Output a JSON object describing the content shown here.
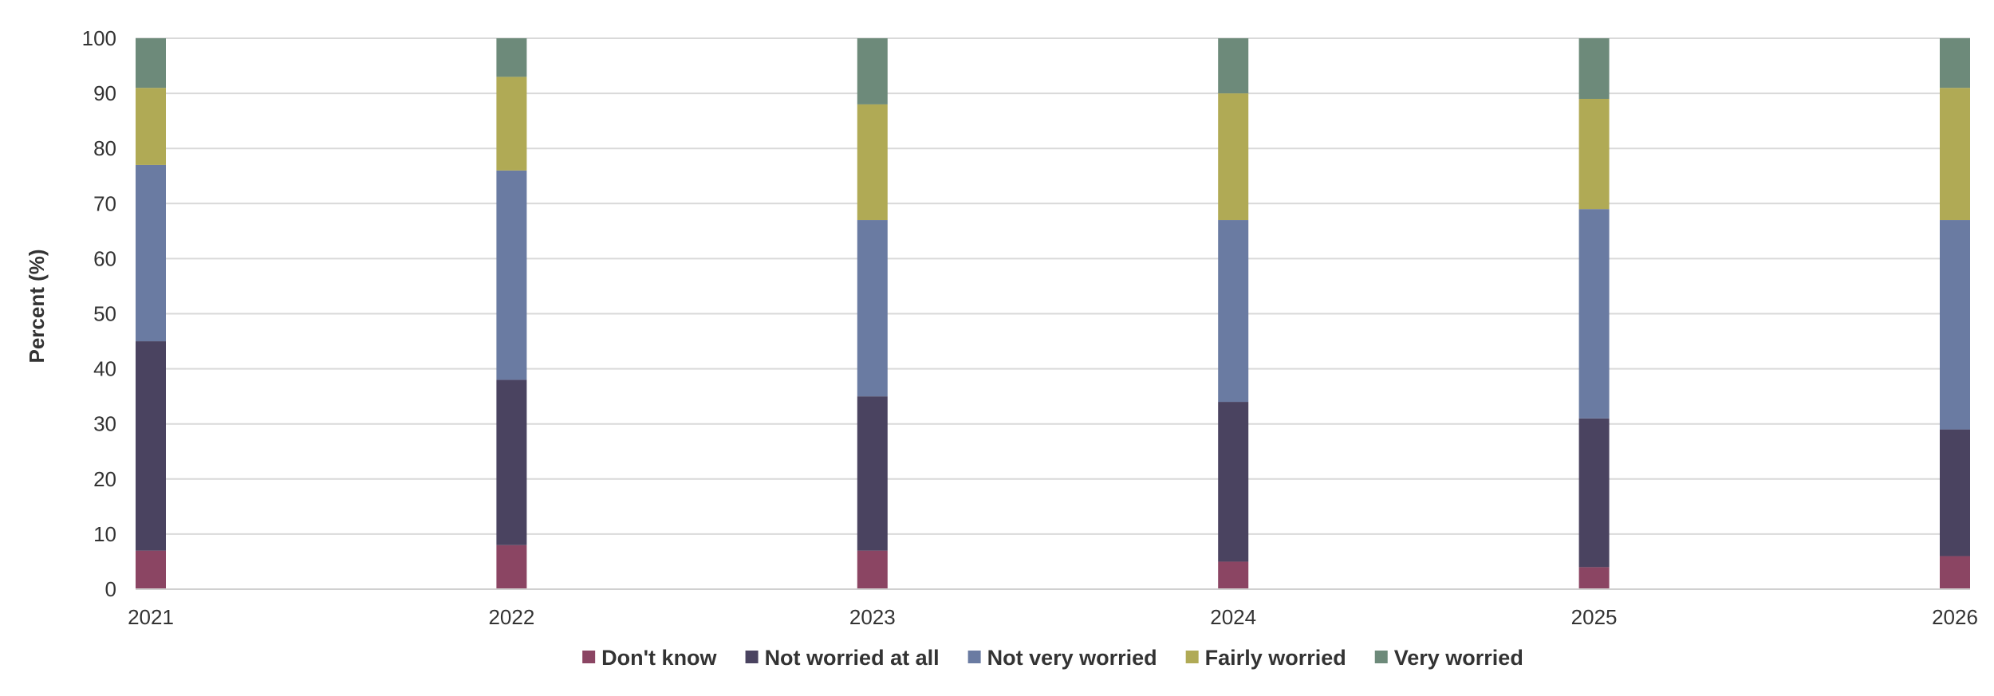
{
  "chart_data": {
    "type": "bar",
    "stacked": true,
    "ylabel": "Percent (%)",
    "xlabel": "",
    "ylim": [
      0,
      100
    ],
    "yticks": [
      0,
      10,
      20,
      30,
      40,
      50,
      60,
      70,
      80,
      90,
      100
    ],
    "grid": true,
    "legend_position": "bottom",
    "categories": [
      "2021",
      "2022",
      "2023",
      "2024",
      "2025",
      "2026"
    ],
    "series": [
      {
        "name": "Don't know",
        "color": "#8b4563",
        "values": [
          7,
          8,
          7,
          5,
          4,
          6
        ]
      },
      {
        "name": "Not worried at all",
        "color": "#4a4360",
        "values": [
          38,
          30,
          28,
          29,
          27,
          23
        ]
      },
      {
        "name": "Not very worried",
        "color": "#6a7ba2",
        "values": [
          32,
          38,
          32,
          33,
          38,
          38
        ]
      },
      {
        "name": "Fairly worried",
        "color": "#b0aa55",
        "values": [
          14,
          17,
          21,
          23,
          20,
          24
        ]
      },
      {
        "name": "Very worried",
        "color": "#6d8a7a",
        "values": [
          9,
          7,
          12,
          10,
          11,
          9
        ]
      }
    ]
  }
}
